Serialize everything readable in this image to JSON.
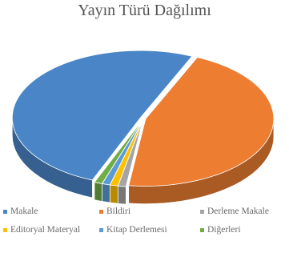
{
  "chart_data": {
    "type": "pie",
    "title": "Yayın Türü Dağılımı",
    "categories": [
      "Makale",
      "Bildiri",
      "Derleme Makale",
      "Editoryal Materyal",
      "Kitap Derlemesi",
      "Diğerleri"
    ],
    "values": [
      50.5,
      45.5,
      1.0,
      1.0,
      1.0,
      1.0
    ],
    "colors": [
      "#4a86c7",
      "#ec7d31",
      "#a5a5a5",
      "#ffc000",
      "#5b9bd5",
      "#70ad47"
    ],
    "legend_position": "bottom",
    "style": "3d-exploded"
  }
}
